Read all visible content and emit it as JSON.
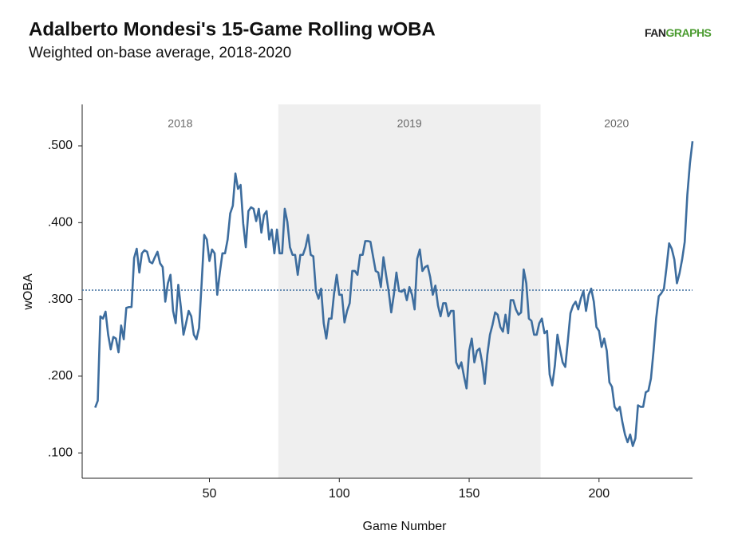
{
  "chart_data": {
    "type": "line",
    "title": "Adalberto Mondesi's 15-Game Rolling wOBA",
    "subtitle": "Weighted on-base average, 2018-2020",
    "brand": [
      "FAN",
      "GRAPHS"
    ],
    "x_label": "Game Number",
    "y_label": "wOBA",
    "color": "#3d6d9e",
    "reference_line": 0.312,
    "reference_color": "#3d6d9e",
    "shade_color": "#efefef",
    "seasons": [
      {
        "label": "2018",
        "start": 1,
        "end": 76.5,
        "shaded": false
      },
      {
        "label": "2019",
        "start": 76.5,
        "end": 177.5,
        "shaded": true
      },
      {
        "label": "2020",
        "start": 177.5,
        "end": 236,
        "shaded": false
      }
    ],
    "xlim": [
      1,
      236
    ],
    "xticks": [
      50,
      100,
      150,
      200
    ],
    "ylim": [
      0.067,
      0.554
    ],
    "yticks": [
      {
        "value": 0.1,
        "label": ".100"
      },
      {
        "value": 0.2,
        "label": ".200"
      },
      {
        "value": 0.3,
        "label": ".300"
      },
      {
        "value": 0.4,
        "label": ".400"
      },
      {
        "value": 0.5,
        "label": ".500"
      }
    ],
    "x": [
      6,
      7,
      8,
      9,
      10,
      11,
      12,
      13,
      14,
      15,
      16,
      17,
      18,
      19,
      20,
      21,
      22,
      23,
      24,
      25,
      26,
      27,
      28,
      29,
      30,
      31,
      32,
      33,
      34,
      35,
      36,
      37,
      38,
      39,
      40,
      41,
      42,
      43,
      44,
      45,
      46,
      47,
      48,
      49,
      50,
      51,
      52,
      53,
      54,
      55,
      56,
      57,
      58,
      59,
      60,
      61,
      62,
      63,
      64,
      65,
      66,
      67,
      68,
      69,
      70,
      71,
      72,
      73,
      74,
      75,
      76,
      77,
      78,
      79,
      80,
      81,
      82,
      83,
      84,
      85,
      86,
      87,
      88,
      89,
      90,
      91,
      92,
      93,
      94,
      95,
      96,
      97,
      98,
      99,
      100,
      101,
      102,
      103,
      104,
      105,
      106,
      107,
      108,
      109,
      110,
      111,
      112,
      113,
      114,
      115,
      116,
      117,
      118,
      119,
      120,
      121,
      122,
      123,
      124,
      125,
      126,
      127,
      128,
      129,
      130,
      131,
      132,
      133,
      134,
      135,
      136,
      137,
      138,
      139,
      140,
      141,
      142,
      143,
      144,
      145,
      146,
      147,
      148,
      149,
      150,
      151,
      152,
      153,
      154,
      155,
      156,
      157,
      158,
      159,
      160,
      161,
      162,
      163,
      164,
      165,
      166,
      167,
      168,
      169,
      170,
      171,
      172,
      173,
      174,
      175,
      176,
      177,
      178,
      179,
      180,
      181,
      182,
      183,
      184,
      185,
      186,
      187,
      188,
      189,
      190,
      191,
      192,
      193,
      194,
      195,
      196,
      197,
      198,
      199,
      200,
      201,
      202,
      203,
      204,
      205,
      206,
      207,
      208,
      209,
      210,
      211,
      212,
      213,
      214,
      215,
      216,
      217,
      218,
      219,
      220,
      221,
      222,
      223,
      224,
      225,
      226,
      227,
      228,
      229,
      230,
      231,
      232,
      233,
      234,
      235,
      236
    ],
    "values": [
      0.159,
      0.168,
      0.278,
      0.275,
      0.284,
      0.254,
      0.235,
      0.251,
      0.249,
      0.231,
      0.266,
      0.248,
      0.289,
      0.29,
      0.29,
      0.354,
      0.366,
      0.335,
      0.36,
      0.364,
      0.362,
      0.349,
      0.347,
      0.355,
      0.362,
      0.347,
      0.342,
      0.297,
      0.321,
      0.332,
      0.285,
      0.269,
      0.319,
      0.29,
      0.254,
      0.269,
      0.285,
      0.278,
      0.254,
      0.248,
      0.263,
      0.321,
      0.384,
      0.378,
      0.35,
      0.365,
      0.36,
      0.306,
      0.335,
      0.36,
      0.36,
      0.378,
      0.412,
      0.422,
      0.464,
      0.444,
      0.449,
      0.399,
      0.368,
      0.415,
      0.42,
      0.418,
      0.402,
      0.418,
      0.387,
      0.41,
      0.415,
      0.378,
      0.391,
      0.36,
      0.391,
      0.36,
      0.36,
      0.418,
      0.401,
      0.368,
      0.358,
      0.358,
      0.332,
      0.358,
      0.358,
      0.368,
      0.384,
      0.358,
      0.356,
      0.311,
      0.301,
      0.314,
      0.269,
      0.249,
      0.275,
      0.275,
      0.308,
      0.332,
      0.306,
      0.306,
      0.27,
      0.285,
      0.295,
      0.337,
      0.337,
      0.332,
      0.358,
      0.358,
      0.376,
      0.376,
      0.375,
      0.356,
      0.337,
      0.335,
      0.316,
      0.355,
      0.332,
      0.311,
      0.283,
      0.306,
      0.335,
      0.311,
      0.31,
      0.313,
      0.299,
      0.316,
      0.306,
      0.287,
      0.353,
      0.365,
      0.337,
      0.342,
      0.344,
      0.329,
      0.306,
      0.318,
      0.292,
      0.278,
      0.295,
      0.295,
      0.278,
      0.285,
      0.285,
      0.218,
      0.21,
      0.218,
      0.2,
      0.184,
      0.233,
      0.249,
      0.218,
      0.233,
      0.236,
      0.218,
      0.19,
      0.228,
      0.254,
      0.267,
      0.283,
      0.28,
      0.264,
      0.258,
      0.28,
      0.256,
      0.299,
      0.299,
      0.287,
      0.28,
      0.283,
      0.339,
      0.321,
      0.275,
      0.272,
      0.254,
      0.254,
      0.269,
      0.275,
      0.256,
      0.259,
      0.202,
      0.188,
      0.214,
      0.254,
      0.235,
      0.218,
      0.212,
      0.246,
      0.282,
      0.292,
      0.297,
      0.287,
      0.301,
      0.311,
      0.285,
      0.306,
      0.314,
      0.297,
      0.264,
      0.259,
      0.238,
      0.249,
      0.233,
      0.192,
      0.186,
      0.16,
      0.155,
      0.16,
      0.14,
      0.124,
      0.114,
      0.124,
      0.109,
      0.119,
      0.162,
      0.16,
      0.16,
      0.179,
      0.181,
      0.197,
      0.233,
      0.275,
      0.304,
      0.308,
      0.314,
      0.342,
      0.373,
      0.366,
      0.352,
      0.321,
      0.334,
      0.352,
      0.375,
      0.436,
      0.477,
      0.506
    ]
  }
}
